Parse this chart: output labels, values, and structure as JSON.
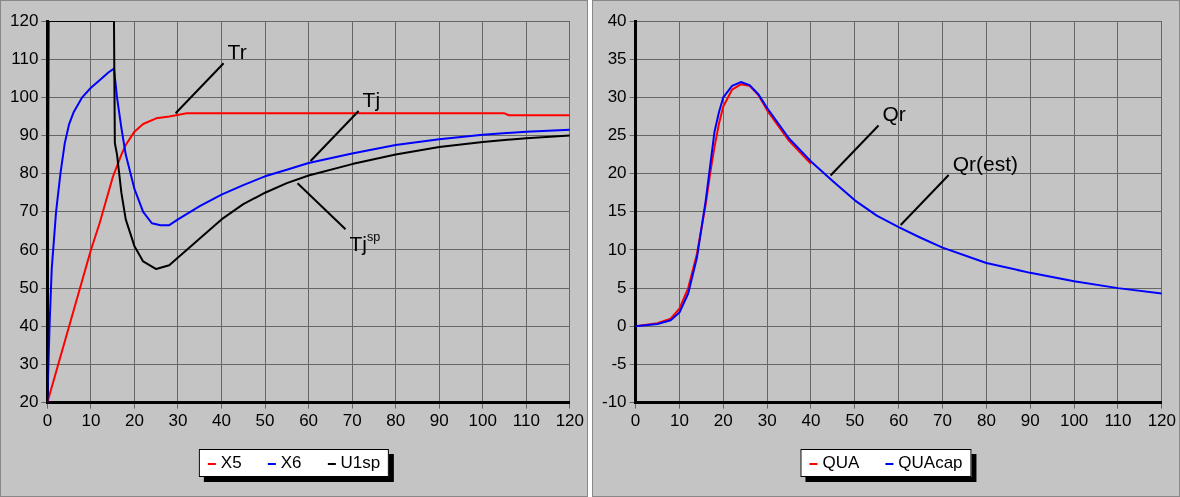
{
  "chart_data": [
    {
      "type": "line",
      "xlim": [
        0,
        120
      ],
      "xticks": [
        0,
        10,
        20,
        30,
        40,
        50,
        60,
        70,
        80,
        90,
        100,
        110,
        120
      ],
      "ylim": [
        20,
        120
      ],
      "yticks": [
        20,
        30,
        40,
        50,
        60,
        70,
        80,
        90,
        100,
        110,
        120
      ],
      "grid": true,
      "legend": "bottom",
      "marker": "none",
      "line_style": "solid",
      "series": [
        {
          "name": "X5",
          "color": "#ff0000",
          "x": [
            0,
            2,
            5,
            8,
            10,
            12,
            15,
            17,
            18,
            20,
            22,
            25,
            28,
            32,
            40,
            60,
            80,
            105,
            106,
            120
          ],
          "values": [
            20,
            28,
            40,
            52,
            60,
            67,
            79,
            85,
            87.5,
            91,
            93,
            94.5,
            95,
            95.8,
            95.8,
            95.8,
            95.8,
            95.8,
            95.3,
            95.3
          ]
        },
        {
          "name": "X6",
          "color": "#0000ff",
          "x": [
            0,
            0.5,
            1,
            2,
            3,
            4,
            5,
            6,
            8,
            10,
            12,
            14,
            15.3,
            16,
            17,
            18,
            20,
            22,
            24,
            26,
            28,
            30,
            35,
            40,
            45,
            50,
            55,
            60,
            70,
            80,
            90,
            100,
            110,
            120
          ],
          "values": [
            20,
            40,
            55,
            70,
            80,
            88,
            93,
            96,
            100,
            102.5,
            104.5,
            106.5,
            107.5,
            100,
            92,
            85,
            76,
            70,
            67,
            66.5,
            66.5,
            68,
            71.5,
            74.5,
            77,
            79.3,
            81,
            82.8,
            85.3,
            87.5,
            89,
            90.2,
            91,
            91.5
          ]
        },
        {
          "name": "U1sp",
          "color": "#000000",
          "x": [
            0,
            0.3,
            15.3,
            15.5,
            16,
            17,
            18,
            20,
            22,
            25,
            28,
            30,
            35,
            40,
            45,
            50,
            55,
            60,
            70,
            80,
            90,
            100,
            110,
            120
          ],
          "values": [
            20,
            120,
            120,
            88,
            85,
            75,
            68,
            61,
            57,
            55,
            56,
            58,
            63,
            68,
            72,
            75,
            77.5,
            79.5,
            82.5,
            85,
            87,
            88.3,
            89.3,
            90
          ]
        }
      ],
      "annotations": [
        {
          "text": "Tr",
          "x": 29,
          "y": 95.3
        },
        {
          "text": "Tj",
          "x": 60,
          "y": 82.8
        },
        {
          "text": "Tj$^{sp}$",
          "x": 57,
          "y": 78
        }
      ]
    },
    {
      "type": "line",
      "xlim": [
        0,
        120
      ],
      "xticks": [
        0,
        10,
        20,
        30,
        40,
        50,
        60,
        70,
        80,
        90,
        100,
        110,
        120
      ],
      "ylim": [
        -10,
        40
      ],
      "yticks": [
        -10,
        -5,
        0,
        5,
        10,
        15,
        20,
        25,
        30,
        35,
        40
      ],
      "grid": true,
      "legend": "bottom",
      "marker": "none",
      "line_style": "solid",
      "series": [
        {
          "name": "QUA",
          "color": "#ff0000",
          "x": [
            0,
            5,
            8,
            10,
            12,
            14,
            16,
            17,
            18,
            19,
            20,
            22,
            24,
            26,
            28,
            30,
            35,
            40
          ],
          "values": [
            0,
            0.4,
            1,
            2.3,
            5,
            9.5,
            16,
            20,
            23.5,
            26.5,
            28.8,
            31,
            31.7,
            31.5,
            30.3,
            28.3,
            24.3,
            21.3
          ]
        },
        {
          "name": "QUAcap",
          "color": "#0000ff",
          "x": [
            0,
            5,
            8,
            10,
            12,
            14,
            16,
            17,
            18,
            19,
            20,
            22,
            24,
            26,
            28,
            30,
            35,
            40,
            45,
            50,
            55,
            60,
            65,
            70,
            80,
            90,
            100,
            110,
            120
          ],
          "values": [
            0,
            0.3,
            0.8,
            1.8,
            4.3,
            9,
            16.5,
            21,
            25.5,
            28,
            30,
            31.5,
            32,
            31.6,
            30.4,
            28.6,
            24.6,
            21.6,
            19,
            16.5,
            14.5,
            13,
            11.6,
            10.3,
            8.3,
            7,
            5.9,
            5,
            4.3
          ]
        }
      ],
      "annotations": [
        {
          "text": "Qr",
          "x": 44,
          "y": 19.5
        },
        {
          "text": "Qr(est)",
          "x": 60,
          "y": 13
        }
      ]
    }
  ]
}
